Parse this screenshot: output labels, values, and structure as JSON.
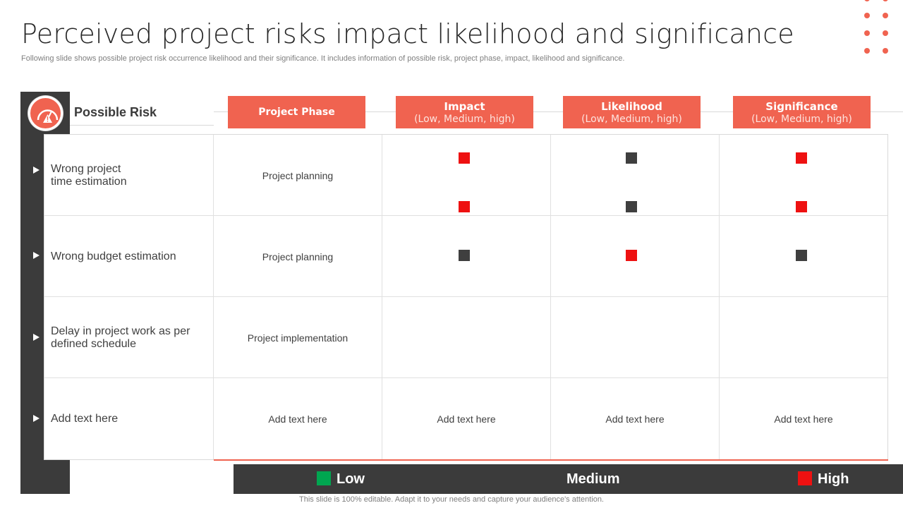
{
  "slide": {
    "title": "Perceived project risks impact likelihood and significance",
    "subtitle": "Following slide shows possible project risk occurrence likelihood and their significance. It includes information of possible risk, project phase, impact, likelihood and significance.",
    "footer": "This slide is 100% editable. Adapt it to your needs and capture your audience's attention."
  },
  "colors": {
    "accent": "#f06350",
    "dark": "#3b3b3b",
    "high": "#ee1111",
    "medium": "#3f3f3f",
    "low": "#00a650"
  },
  "icons": {
    "header": "gauge-warning-icon",
    "row_marker": "triangle-right-icon"
  },
  "table": {
    "risk_header": "Possible Risk",
    "columns": [
      {
        "label": "Project Phase",
        "sub": ""
      },
      {
        "label": "Impact",
        "sub": "(Low, Medium, high)"
      },
      {
        "label": "Likelihood",
        "sub": "(Low, Medium, high)"
      },
      {
        "label": "Significance",
        "sub": "(Low, Medium, high)"
      }
    ],
    "rows": [
      {
        "risk": "Wrong project\ntime estimation",
        "phase": "Project planning",
        "impact": "",
        "likelihood": "",
        "significance": ""
      },
      {
        "risk": "Wrong budget estimation",
        "phase": "Project planning",
        "impact": "",
        "likelihood": "",
        "significance": ""
      },
      {
        "risk": "Delay in project work as per defined schedule",
        "phase": "Project implementation",
        "impact": "",
        "likelihood": "",
        "significance": ""
      },
      {
        "risk": "Add text here",
        "phase": "Add text here",
        "impact": "Add text here",
        "likelihood": "Add text here",
        "significance": "Add text here"
      }
    ]
  },
  "legend": [
    {
      "label": "Low",
      "color": "#00a650"
    },
    {
      "label": "Medium",
      "color": ""
    },
    {
      "label": "High",
      "color": "#ee1111"
    }
  ]
}
